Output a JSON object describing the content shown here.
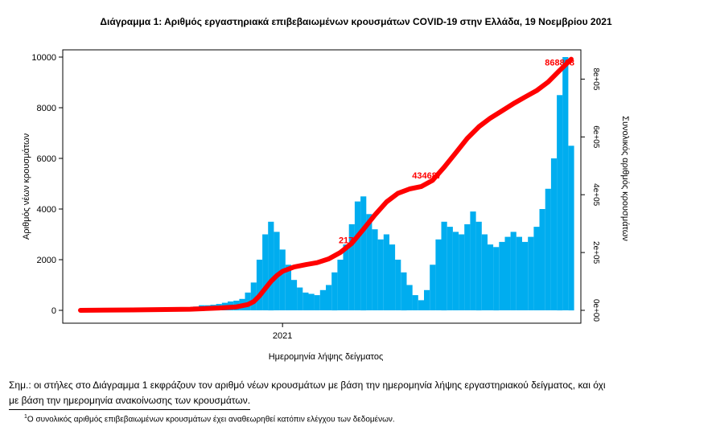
{
  "title": "Διάγραμμα 1: Αριθμός εργαστηριακά επιβεβαιωμένων κρουσμάτων COVID-19 στην Ελλάδα, 19 Νοεμβρίου 2021",
  "note_line1": "Σημ.: οι στήλες στο Διάγραμμα 1 εκφράζουν τον αριθμό νέων κρουσμάτων με βάση την ημερομηνία λήψης εργαστηριακού δείγματος, και όχι",
  "note_line2": "με βάση την ημερομηνία ανακοίνωσης των κρουσμάτων.",
  "footnote_mark": "1",
  "footnote_text": "Ο συνολικός αριθμός επιβεβαιωμένων κρουσμάτων έχει αναθεωρηθεί κατόπιν ελέγχου των δεδομένων.",
  "colors": {
    "bars": "#00adef",
    "cumulative": "#ff0000",
    "labels": "#000000"
  },
  "chart_data": {
    "type": "bar",
    "xlabel": "Ημερομηνία λήψης δείγματος",
    "ylabel": "Αριθμός νέων κρουσμάτων",
    "y2label": "Συνολικός αριθμός κρουσμάτων",
    "x_ticks": [
      "2021"
    ],
    "y_ticks": [
      "0",
      "2000",
      "4000",
      "6000",
      "8000",
      "10000"
    ],
    "y2_ticks": [
      "0e+00",
      "2e+05",
      "4e+05",
      "6e+05",
      "8e+05"
    ],
    "ylim": [
      0,
      10500
    ],
    "y2lim": [
      0,
      920000
    ],
    "weekly_new_cases": [
      {
        "week": 1,
        "value": 2
      },
      {
        "week": 2,
        "value": 5
      },
      {
        "week": 3,
        "value": 12
      },
      {
        "week": 4,
        "value": 30
      },
      {
        "week": 5,
        "value": 60
      },
      {
        "week": 6,
        "value": 80
      },
      {
        "week": 7,
        "value": 70
      },
      {
        "week": 8,
        "value": 60
      },
      {
        "week": 9,
        "value": 40
      },
      {
        "week": 10,
        "value": 20
      },
      {
        "week": 11,
        "value": 15
      },
      {
        "week": 12,
        "value": 12
      },
      {
        "week": 13,
        "value": 10
      },
      {
        "week": 14,
        "value": 12
      },
      {
        "week": 15,
        "value": 15
      },
      {
        "week": 16,
        "value": 20
      },
      {
        "week": 17,
        "value": 25
      },
      {
        "week": 18,
        "value": 35
      },
      {
        "week": 19,
        "value": 50
      },
      {
        "week": 20,
        "value": 100
      },
      {
        "week": 21,
        "value": 150
      },
      {
        "week": 22,
        "value": 200
      },
      {
        "week": 23,
        "value": 200
      },
      {
        "week": 24,
        "value": 220
      },
      {
        "week": 25,
        "value": 250
      },
      {
        "week": 26,
        "value": 300
      },
      {
        "week": 27,
        "value": 350
      },
      {
        "week": 28,
        "value": 380
      },
      {
        "week": 29,
        "value": 450
      },
      {
        "week": 30,
        "value": 700
      },
      {
        "week": 31,
        "value": 1100
      },
      {
        "week": 32,
        "value": 2000
      },
      {
        "week": 33,
        "value": 3000
      },
      {
        "week": 34,
        "value": 3500
      },
      {
        "week": 35,
        "value": 3100
      },
      {
        "week": 36,
        "value": 2400
      },
      {
        "week": 37,
        "value": 1800
      },
      {
        "week": 38,
        "value": 1200
      },
      {
        "week": 39,
        "value": 900
      },
      {
        "week": 40,
        "value": 700
      },
      {
        "week": 41,
        "value": 650
      },
      {
        "week": 42,
        "value": 600
      },
      {
        "week": 43,
        "value": 800
      },
      {
        "week": 44,
        "value": 1000
      },
      {
        "week": 45,
        "value": 1500
      },
      {
        "week": 46,
        "value": 2000
      },
      {
        "week": 47,
        "value": 2600
      },
      {
        "week": 48,
        "value": 3400
      },
      {
        "week": 49,
        "value": 4300
      },
      {
        "week": 50,
        "value": 4500
      },
      {
        "week": 51,
        "value": 3800
      },
      {
        "week": 52,
        "value": 3200
      },
      {
        "week": 53,
        "value": 2800
      },
      {
        "week": 54,
        "value": 3000
      },
      {
        "week": 55,
        "value": 2600
      },
      {
        "week": 56,
        "value": 2000
      },
      {
        "week": 57,
        "value": 1500
      },
      {
        "week": 58,
        "value": 1000
      },
      {
        "week": 59,
        "value": 600
      },
      {
        "week": 60,
        "value": 400
      },
      {
        "week": 61,
        "value": 800
      },
      {
        "week": 62,
        "value": 1800
      },
      {
        "week": 63,
        "value": 2800
      },
      {
        "week": 64,
        "value": 3500
      },
      {
        "week": 65,
        "value": 3300
      },
      {
        "week": 66,
        "value": 3100
      },
      {
        "week": 67,
        "value": 3000
      },
      {
        "week": 68,
        "value": 3400
      },
      {
        "week": 69,
        "value": 3900
      },
      {
        "week": 70,
        "value": 3500
      },
      {
        "week": 71,
        "value": 3000
      },
      {
        "week": 72,
        "value": 2600
      },
      {
        "week": 73,
        "value": 2500
      },
      {
        "week": 74,
        "value": 2700
      },
      {
        "week": 75,
        "value": 2900
      },
      {
        "week": 76,
        "value": 3100
      },
      {
        "week": 77,
        "value": 2900
      },
      {
        "week": 78,
        "value": 2700
      },
      {
        "week": 79,
        "value": 2900
      },
      {
        "week": 80,
        "value": 3300
      },
      {
        "week": 81,
        "value": 4000
      },
      {
        "week": 82,
        "value": 4800
      },
      {
        "week": 83,
        "value": 6000
      },
      {
        "week": 84,
        "value": 8500
      },
      {
        "week": 85,
        "value": 10000
      },
      {
        "week": 86,
        "value": 6500
      }
    ],
    "cumulative_cases": [
      {
        "week": 1,
        "value": 0
      },
      {
        "week": 10,
        "value": 1500
      },
      {
        "week": 20,
        "value": 4000
      },
      {
        "week": 25,
        "value": 8000
      },
      {
        "week": 28,
        "value": 12000
      },
      {
        "week": 30,
        "value": 20000
      },
      {
        "week": 31,
        "value": 30000
      },
      {
        "week": 32,
        "value": 50000
      },
      {
        "week": 33,
        "value": 75000
      },
      {
        "week": 34,
        "value": 100000
      },
      {
        "week": 35,
        "value": 120000
      },
      {
        "week": 36,
        "value": 135000
      },
      {
        "week": 38,
        "value": 150000
      },
      {
        "week": 40,
        "value": 158000
      },
      {
        "week": 42,
        "value": 165000
      },
      {
        "week": 44,
        "value": 178000
      },
      {
        "week": 46,
        "value": 200000
      },
      {
        "week": 48,
        "value": 232000
      },
      {
        "week": 50,
        "value": 280000
      },
      {
        "week": 52,
        "value": 330000
      },
      {
        "week": 54,
        "value": 375000
      },
      {
        "week": 56,
        "value": 405000
      },
      {
        "week": 58,
        "value": 420000
      },
      {
        "week": 60,
        "value": 428000
      },
      {
        "week": 62,
        "value": 450000
      },
      {
        "week": 64,
        "value": 495000
      },
      {
        "week": 66,
        "value": 545000
      },
      {
        "week": 68,
        "value": 595000
      },
      {
        "week": 70,
        "value": 635000
      },
      {
        "week": 72,
        "value": 665000
      },
      {
        "week": 74,
        "value": 690000
      },
      {
        "week": 76,
        "value": 715000
      },
      {
        "week": 78,
        "value": 738000
      },
      {
        "week": 80,
        "value": 760000
      },
      {
        "week": 82,
        "value": 790000
      },
      {
        "week": 84,
        "value": 830000
      },
      {
        "week": 86,
        "value": 868868
      }
    ],
    "annotations": [
      {
        "text": "217",
        "week": 47
      },
      {
        "text": "434687",
        "week": 61
      },
      {
        "text": "868868",
        "week": 84
      }
    ]
  }
}
